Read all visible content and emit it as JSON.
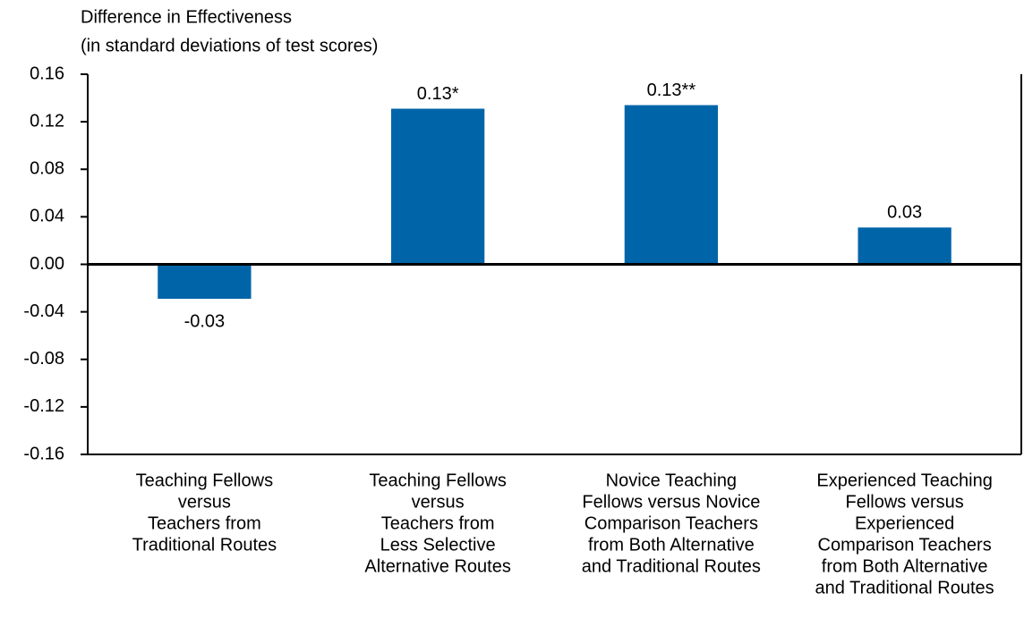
{
  "chart_data": {
    "type": "bar",
    "title": [
      "Difference in Effectiveness",
      "(in standard deviations of test scores)"
    ],
    "categories": [
      [
        "Teaching Fellows",
        "versus",
        "Teachers from",
        "Traditional Routes"
      ],
      [
        "Teaching Fellows",
        "versus",
        "Teachers from",
        "Less Selective",
        "Alternative Routes"
      ],
      [
        "Novice Teaching",
        "Fellows versus Novice",
        "Comparison Teachers",
        "from Both Alternative",
        "and Traditional Routes"
      ],
      [
        "Experienced Teaching",
        "Fellows versus",
        "Experienced",
        "Comparison Teachers",
        "from Both Alternative",
        "and Traditional Routes"
      ]
    ],
    "values": [
      -0.029,
      0.131,
      0.134,
      0.031
    ],
    "value_labels": [
      "-0.03",
      "0.13*",
      "0.13**",
      "0.03"
    ],
    "color": "#0065a8",
    "ylim": [
      -0.16,
      0.16
    ],
    "yticks": [
      -0.16,
      -0.12,
      -0.08,
      -0.04,
      {
        "value": 0,
        "label": "0.00"
      },
      0.04,
      0.08,
      0.12,
      0.16
    ],
    "grid": false
  }
}
